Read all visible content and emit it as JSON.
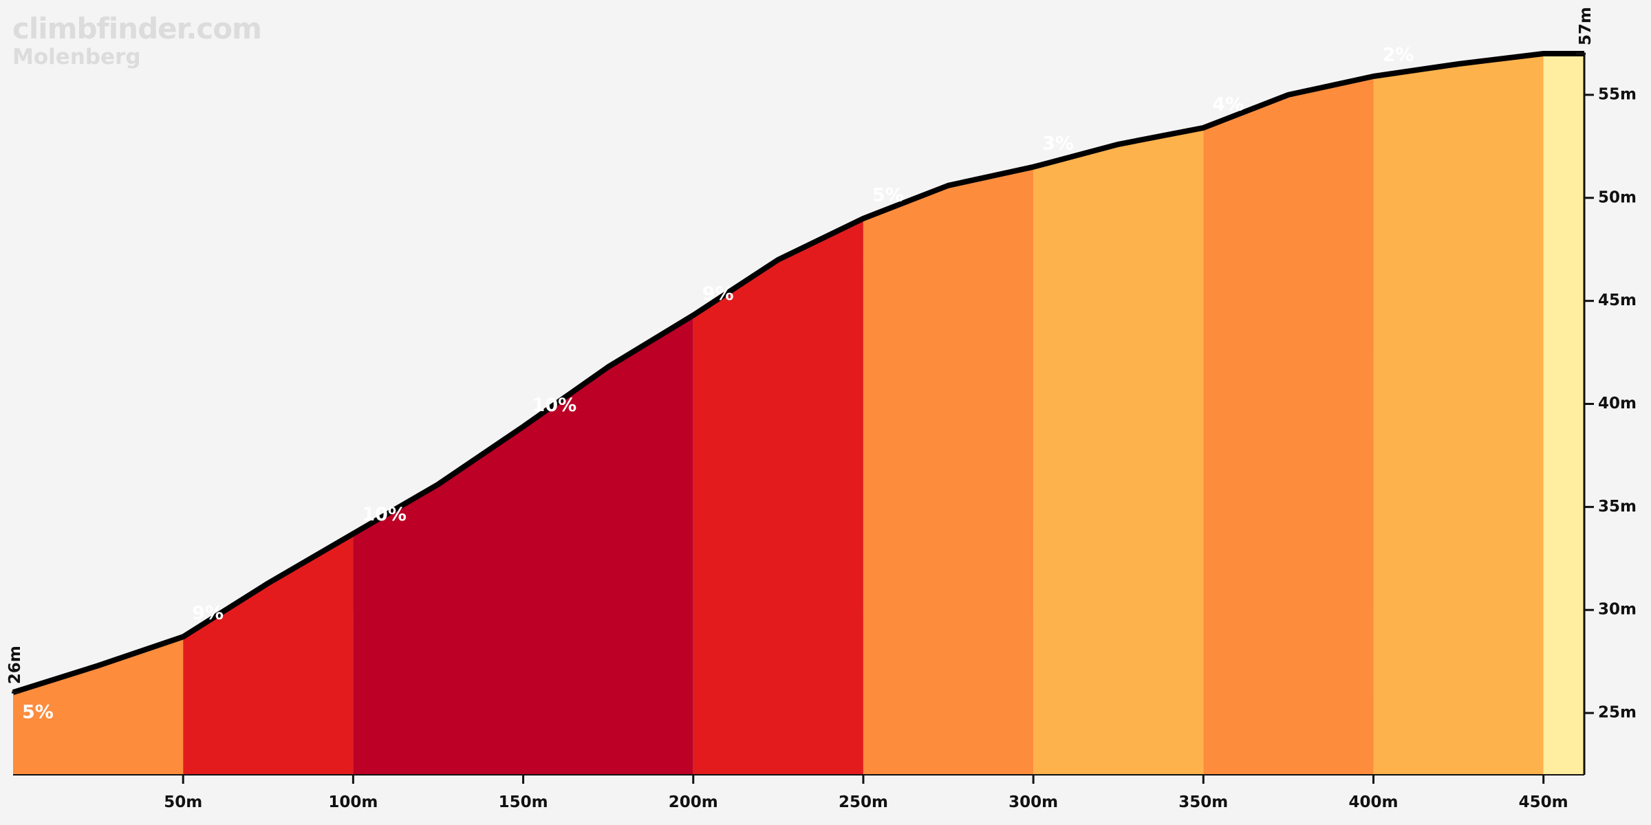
{
  "brand": {
    "site": "climbfinder.com",
    "climb": "Molenberg"
  },
  "chart_data": {
    "type": "area",
    "title": "Molenberg",
    "xlabel": "",
    "ylabel": "",
    "x_unit": "m",
    "y_unit": "m",
    "xlim": [
      0,
      462
    ],
    "ylim": [
      22,
      57
    ],
    "x_ticks": [
      50,
      100,
      150,
      200,
      250,
      300,
      350,
      400,
      450
    ],
    "y_ticks": [
      25,
      30,
      35,
      40,
      45,
      50,
      55
    ],
    "start_elevation": 26,
    "end_elevation": 57,
    "profile": {
      "distance": [
        0,
        25,
        50,
        75,
        100,
        125,
        150,
        175,
        200,
        225,
        250,
        275,
        300,
        325,
        350,
        375,
        400,
        425,
        450,
        462
      ],
      "elevation": [
        26,
        27.3,
        28.7,
        31.3,
        33.7,
        36.1,
        38.9,
        41.8,
        44.3,
        47,
        49,
        50.6,
        51.5,
        52.6,
        53.4,
        55,
        55.9,
        56.5,
        57,
        57
      ]
    },
    "segments": [
      {
        "start": 0,
        "end": 50,
        "grade": "5%",
        "color": "#fd8c3d"
      },
      {
        "start": 50,
        "end": 100,
        "grade": "9%",
        "color": "#e31b1d"
      },
      {
        "start": 100,
        "end": 200,
        "grade": "10%",
        "color": "#bc0026"
      },
      {
        "start": 200,
        "end": 250,
        "grade": "9%",
        "color": "#e31b1d"
      },
      {
        "start": 250,
        "end": 300,
        "grade": "5%",
        "color": "#fd8c3d"
      },
      {
        "start": 300,
        "end": 350,
        "grade": "3%",
        "color": "#feb24c"
      },
      {
        "start": 350,
        "end": 400,
        "grade": "4%",
        "color": "#fd8c3d"
      },
      {
        "start": 400,
        "end": 450,
        "grade": "2%",
        "color": "#feb24c"
      },
      {
        "start": 450,
        "end": 462,
        "grade": "",
        "color": "#ffeda0"
      }
    ],
    "grade_labels": [
      {
        "x": 0,
        "y": 25,
        "text": "5%"
      },
      {
        "x": 50,
        "y": 29.8,
        "text": "9%"
      },
      {
        "x": 100,
        "y": 34.6,
        "text": "10%"
      },
      {
        "x": 150,
        "y": 39.9,
        "text": "10%"
      },
      {
        "x": 200,
        "y": 45.3,
        "text": "9%"
      },
      {
        "x": 250,
        "y": 50.1,
        "text": "5%"
      },
      {
        "x": 300,
        "y": 52.6,
        "text": "3%"
      },
      {
        "x": 350,
        "y": 54.5,
        "text": "4%"
      },
      {
        "x": 400,
        "y": 56.9,
        "text": "2%"
      }
    ],
    "line_color": "#000000",
    "background": "#f4f4f4"
  }
}
